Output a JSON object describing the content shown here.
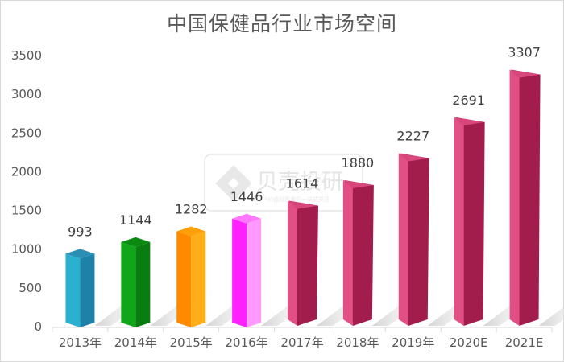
{
  "chart_data": {
    "type": "bar",
    "title": "中国保健品行业市场空间",
    "xlabel": "",
    "ylabel": "",
    "categories": [
      "2013年",
      "2014年",
      "2015年",
      "2016年",
      "2017年",
      "2018年",
      "2019年",
      "2020E",
      "2021E"
    ],
    "values": [
      993,
      1144,
      1282,
      1446,
      1614,
      1880,
      2227,
      2691,
      3307
    ],
    "ylim": [
      0,
      3500
    ],
    "yticks": [
      "0",
      "500",
      "1000",
      "1500",
      "2000",
      "2500",
      "3000",
      "3500"
    ],
    "grid": false,
    "legend": null,
    "data_labels": [
      "993",
      "1144",
      "1282",
      "1446",
      "1614",
      "1880",
      "2227",
      "2691",
      "3307"
    ],
    "bar_colors": [
      {
        "light": "#2bb1cf",
        "dark": "#1e82a8",
        "top": "#2a8fb3"
      },
      {
        "light": "#11a51a",
        "dark": "#0a7d10",
        "top": "#0b8a12"
      },
      {
        "light": "#ff8a00",
        "dark": "#ffae1a",
        "top": "#ff9f0a"
      },
      {
        "light": "#ff22ff",
        "dark": "#ff99ff",
        "top": "#ff77ff"
      },
      {
        "light": "#a31d4c",
        "dark": "#c93468",
        "top": "#e24f84"
      },
      {
        "light": "#a31d4c",
        "dark": "#c93468",
        "top": "#e24f84"
      },
      {
        "light": "#a31d4c",
        "dark": "#c93468",
        "top": "#e24f84"
      },
      {
        "light": "#a31d4c",
        "dark": "#c93468",
        "top": "#e24f84"
      },
      {
        "light": "#a31d4c",
        "dark": "#c93468",
        "top": "#e24f84"
      }
    ]
  },
  "watermark": {
    "brand": "贝壳投研",
    "tagline": "用户价值投资者的一站式关注"
  }
}
